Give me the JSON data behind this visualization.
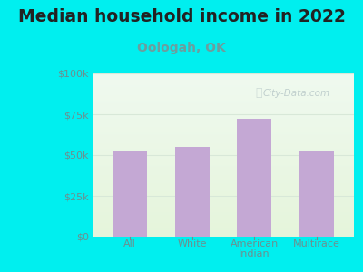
{
  "title": "Median household income in 2022",
  "subtitle": "Oologah, OK",
  "categories": [
    "All",
    "White",
    "American\nIndian",
    "Multirace"
  ],
  "values": [
    53000,
    55000,
    72000,
    53000
  ],
  "bar_color": "#c4a8d4",
  "background_color": "#00EFEF",
  "ylim": [
    0,
    100000
  ],
  "yticks": [
    0,
    25000,
    50000,
    75000,
    100000
  ],
  "ytick_labels": [
    "$0",
    "$25k",
    "$50k",
    "$75k",
    "$100k"
  ],
  "title_fontsize": 13.5,
  "subtitle_fontsize": 10,
  "subtitle_color": "#6b9e9e",
  "tick_color": "#6b9090",
  "watermark": "City-Data.com",
  "watermark_color": "#b8c8c8",
  "grid_color": "#d8e8d8"
}
